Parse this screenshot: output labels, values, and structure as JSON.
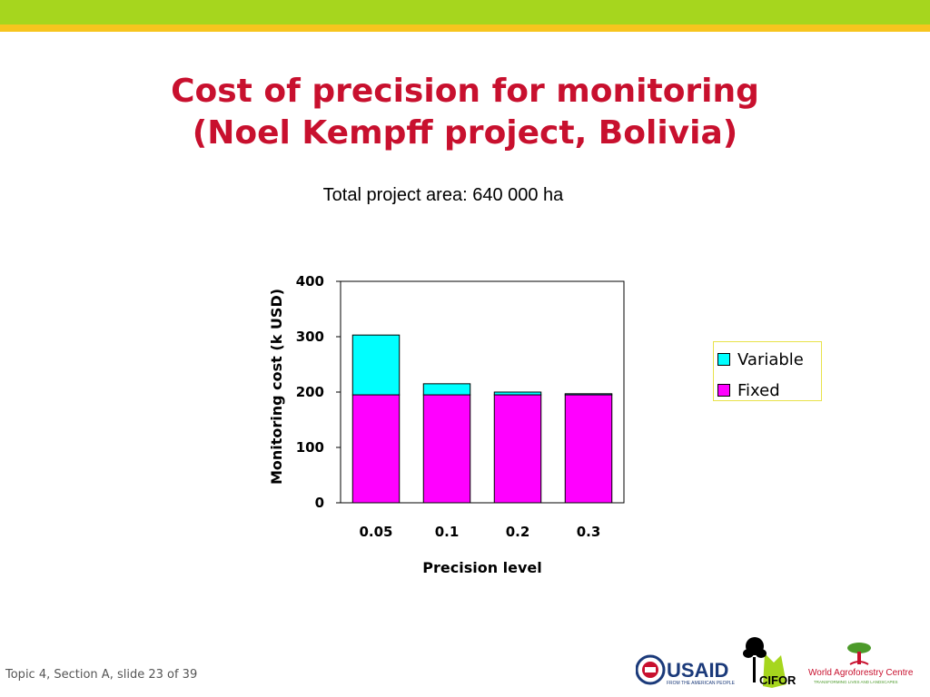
{
  "slide": {
    "title_line1": "Cost of precision for monitoring",
    "title_line2": "(Noel Kempff project, Bolivia)",
    "subtitle": "Total project area: 640 000 ha",
    "footer": "Topic 4, Section A, slide 23 of 39",
    "colors": {
      "band_green": "#a6d61e",
      "band_yellow": "#f7c51e",
      "title": "#c8102e"
    }
  },
  "logos": {
    "usaid": "USAID",
    "usaid_tagline": "FROM THE AMERICAN PEOPLE",
    "cifor": "CIFOR",
    "icraf": "World Agroforestry Centre",
    "icraf_tagline": "TRANSFORMING LIVES AND LANDSCAPES"
  },
  "chart_data": {
    "type": "bar",
    "stacked": true,
    "categories": [
      "0.05",
      "0.1",
      "0.2",
      "0.3"
    ],
    "series": [
      {
        "name": "Fixed",
        "values": [
          195,
          195,
          195,
          195
        ],
        "color": "#ff00ff"
      },
      {
        "name": "Variable",
        "values": [
          108,
          20,
          5,
          2
        ],
        "color": "#00ffff"
      }
    ],
    "xlabel": "Precision level",
    "ylabel": "Monitoring cost  (k USD)",
    "ylim": [
      0,
      400
    ],
    "yticks": [
      0,
      100,
      200,
      300,
      400
    ],
    "grid": false,
    "legend": "right",
    "legend_order": [
      "Variable",
      "Fixed"
    ]
  }
}
